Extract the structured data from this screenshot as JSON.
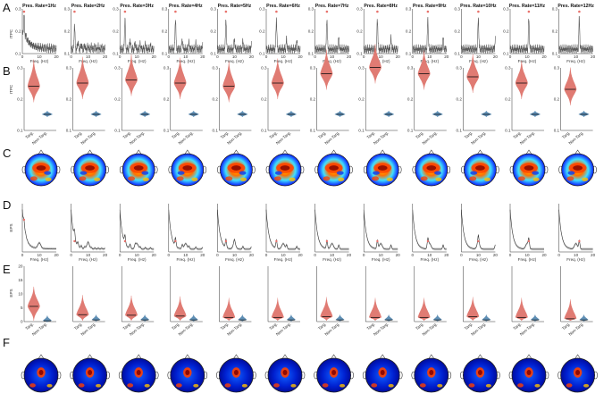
{
  "panels": {
    "A": "A",
    "B": "B",
    "C": "C",
    "D": "D",
    "E": "E",
    "F": "F"
  },
  "titles": [
    "Pres. Rate=1Hz",
    "Pres. Rate=2Hz",
    "Pres. Rate=3Hz",
    "Pres. Rate=4Hz",
    "Pres. Rate=5Hz",
    "Pres. Rate=6Hz",
    "Pres. Rate=7Hz",
    "Pres. Rate=8Hz",
    "Pres. Rate=9Hz",
    "Pres. Rate=10Hz",
    "Pres. Rate=11Hz",
    "Pres. Rate=12Hz"
  ],
  "rates": [
    1,
    2,
    3,
    4,
    5,
    6,
    7,
    8,
    9,
    10,
    11,
    12
  ],
  "row_a": {
    "ylabel": "ITPC",
    "yticks": [
      "0.3",
      "0.2",
      "0.1"
    ],
    "xticks": [
      "0",
      "10",
      "20"
    ],
    "xlabel": "Freq. (Hz)",
    "line_color": "#5a5a5a",
    "marker_color": "#e8716b"
  },
  "row_b": {
    "ylabel": "ITPC",
    "yticks": [
      "0.3",
      "0.2",
      "0.1"
    ],
    "cats": [
      "Targ.",
      "Non-Targ."
    ],
    "targ_color": "#e07b73",
    "non_color": "#5f8fb5",
    "targ_median": [
      0.23,
      0.24,
      0.25,
      0.24,
      0.23,
      0.24,
      0.27,
      0.29,
      0.27,
      0.26,
      0.24,
      0.22
    ],
    "non_median": [
      0.14,
      0.14,
      0.14,
      0.14,
      0.14,
      0.14,
      0.14,
      0.14,
      0.14,
      0.14,
      0.14,
      0.14
    ]
  },
  "row_d": {
    "ylabel": "EPS",
    "xticks": [
      "0",
      "10",
      "20"
    ],
    "xlabel": "Freq. (Hz)"
  },
  "row_e": {
    "ylabel": "EPS",
    "yticks": [
      "20",
      "15",
      "10",
      "5",
      "0"
    ],
    "cats": [
      "Targ.",
      "Non-Targ."
    ],
    "targ_median": [
      5.5,
      2.5,
      2.3,
      2.0,
      1.5,
      1.5,
      1.8,
      1.5,
      1.5,
      1.8,
      1.5,
      1.0
    ],
    "non_median": [
      0.3,
      0.6,
      0.6,
      0.6,
      0.6,
      0.6,
      0.6,
      0.6,
      0.6,
      0.6,
      0.6,
      0.6
    ]
  },
  "topomap_colors": [
    "#00007f",
    "#0040ff",
    "#00c0ff",
    "#40ffbf",
    "#c0ff40",
    "#ffc000",
    "#ff4000",
    "#7f0000"
  ]
}
